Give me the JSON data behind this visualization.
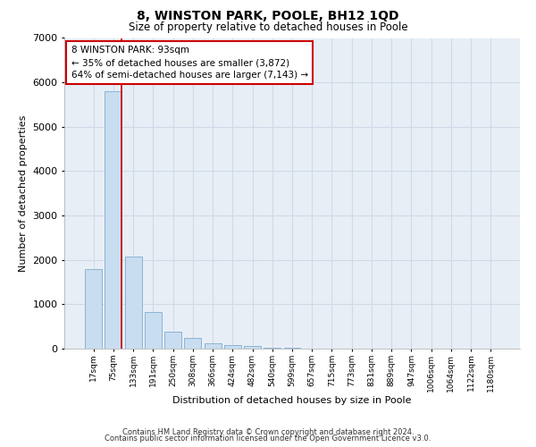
{
  "title": "8, WINSTON PARK, POOLE, BH12 1QD",
  "subtitle": "Size of property relative to detached houses in Poole",
  "xlabel": "Distribution of detached houses by size in Poole",
  "ylabel": "Number of detached properties",
  "footer_line1": "Contains HM Land Registry data © Crown copyright and database right 2024.",
  "footer_line2": "Contains public sector information licensed under the Open Government Licence v3.0.",
  "bar_labels": [
    "17sqm",
    "75sqm",
    "133sqm",
    "191sqm",
    "250sqm",
    "308sqm",
    "366sqm",
    "424sqm",
    "482sqm",
    "540sqm",
    "599sqm",
    "657sqm",
    "715sqm",
    "773sqm",
    "831sqm",
    "889sqm",
    "947sqm",
    "1006sqm",
    "1064sqm",
    "1122sqm",
    "1180sqm"
  ],
  "bar_values": [
    1800,
    5800,
    2080,
    820,
    390,
    240,
    130,
    80,
    70,
    30,
    15,
    5,
    5,
    0,
    0,
    0,
    0,
    0,
    0,
    0,
    0
  ],
  "bar_color": "#c8ddf0",
  "bar_edge_color": "#8ab4d4",
  "property_line_color": "#cc0000",
  "annotation_text": "8 WINSTON PARK: 93sqm\n← 35% of detached houses are smaller (3,872)\n64% of semi-detached houses are larger (7,143) →",
  "annotation_box_color": "#ffffff",
  "annotation_box_edge": "#cc0000",
  "ylim": [
    0,
    7000
  ],
  "yticks": [
    0,
    1000,
    2000,
    3000,
    4000,
    5000,
    6000,
    7000
  ],
  "grid_color": "#d0dae8",
  "axes_bg_color": "#e8eef6",
  "fig_bg_color": "#ffffff"
}
